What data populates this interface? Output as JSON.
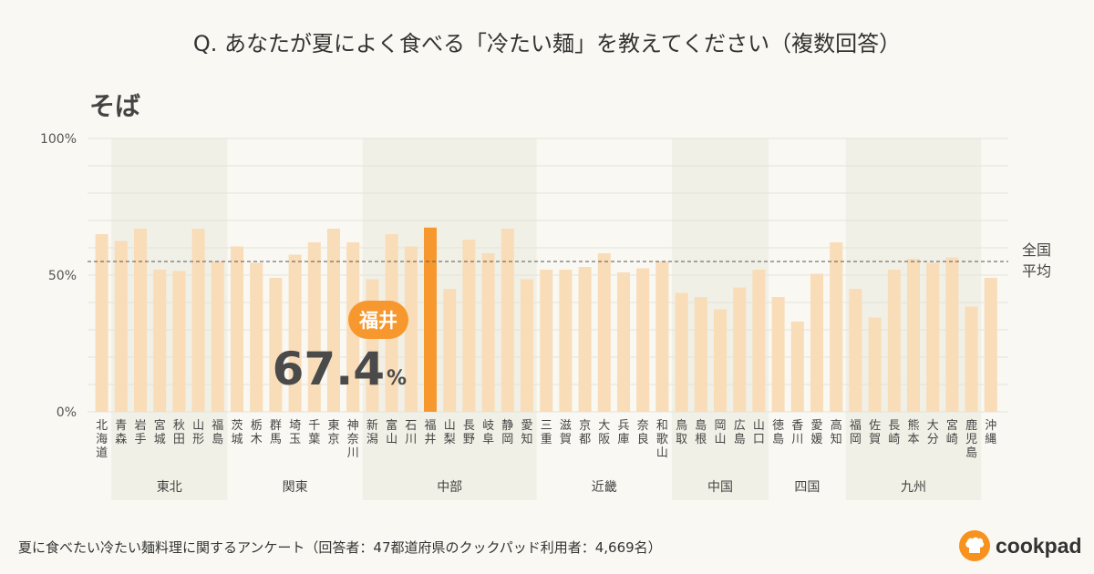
{
  "title": "Q. あなたが夏によく食べる「冷たい麺」を教えてください（複数回答）",
  "subtitle": "そば",
  "footnote": "夏に食べたい冷たい麺料理に関するアンケート（回答者：47都道府県のクックパッド利用者：4,669名）",
  "brand": {
    "name": "cookpad",
    "icon": "chef-hat-icon",
    "color": "#f7921e"
  },
  "colors": {
    "bar": "#f9dcb8",
    "highlight": "#f7982e",
    "region_band": "#f1f0e6",
    "average_line": "#555555",
    "grid": "#e4e2da"
  },
  "chart_data": {
    "type": "bar",
    "ylim": [
      0,
      100
    ],
    "yticks": [
      {
        "value": 0,
        "label": "0%"
      },
      {
        "value": 50,
        "label": "50%"
      },
      {
        "value": 100,
        "label": "100%"
      }
    ],
    "categories": [
      "北海道",
      "青森",
      "岩手",
      "宮城",
      "秋田",
      "山形",
      "福島",
      "茨城",
      "栃木",
      "群馬",
      "埼玉",
      "千葉",
      "東京",
      "神奈川",
      "新潟",
      "富山",
      "石川",
      "福井",
      "山梨",
      "長野",
      "岐阜",
      "静岡",
      "愛知",
      "三重",
      "滋賀",
      "京都",
      "大阪",
      "兵庫",
      "奈良",
      "和歌山",
      "鳥取",
      "島根",
      "岡山",
      "広島",
      "山口",
      "徳島",
      "香川",
      "愛媛",
      "高知",
      "福岡",
      "佐賀",
      "長崎",
      "熊本",
      "大分",
      "宮崎",
      "鹿児島",
      "沖縄"
    ],
    "values": [
      65,
      62.5,
      67,
      52,
      51.5,
      67,
      55,
      60.5,
      54.5,
      49,
      57.5,
      62,
      67,
      62,
      48.5,
      65,
      60.5,
      67.4,
      45,
      63,
      58,
      67,
      48.5,
      52,
      52,
      53,
      58,
      51,
      52.5,
      55,
      43.5,
      42,
      37.5,
      45.5,
      52,
      42,
      33,
      50.5,
      62,
      45,
      34.5,
      52,
      56,
      54.5,
      56.5,
      38.5,
      49
    ],
    "average": {
      "value": 55,
      "label_line1": "全国",
      "label_line2": "平均"
    },
    "highlight": {
      "category": "福井",
      "value_text": "67.4",
      "unit": "%"
    },
    "regions": [
      {
        "name": "東北",
        "start": 1,
        "end": 6,
        "shaded": true
      },
      {
        "name": "関東",
        "start": 7,
        "end": 13,
        "shaded": false
      },
      {
        "name": "中部",
        "start": 14,
        "end": 22,
        "shaded": true
      },
      {
        "name": "近畿",
        "start": 23,
        "end": 29,
        "shaded": false
      },
      {
        "name": "中国",
        "start": 30,
        "end": 34,
        "shaded": true
      },
      {
        "name": "四国",
        "start": 35,
        "end": 38,
        "shaded": false
      },
      {
        "name": "九州",
        "start": 39,
        "end": 45,
        "shaded": true
      }
    ]
  }
}
